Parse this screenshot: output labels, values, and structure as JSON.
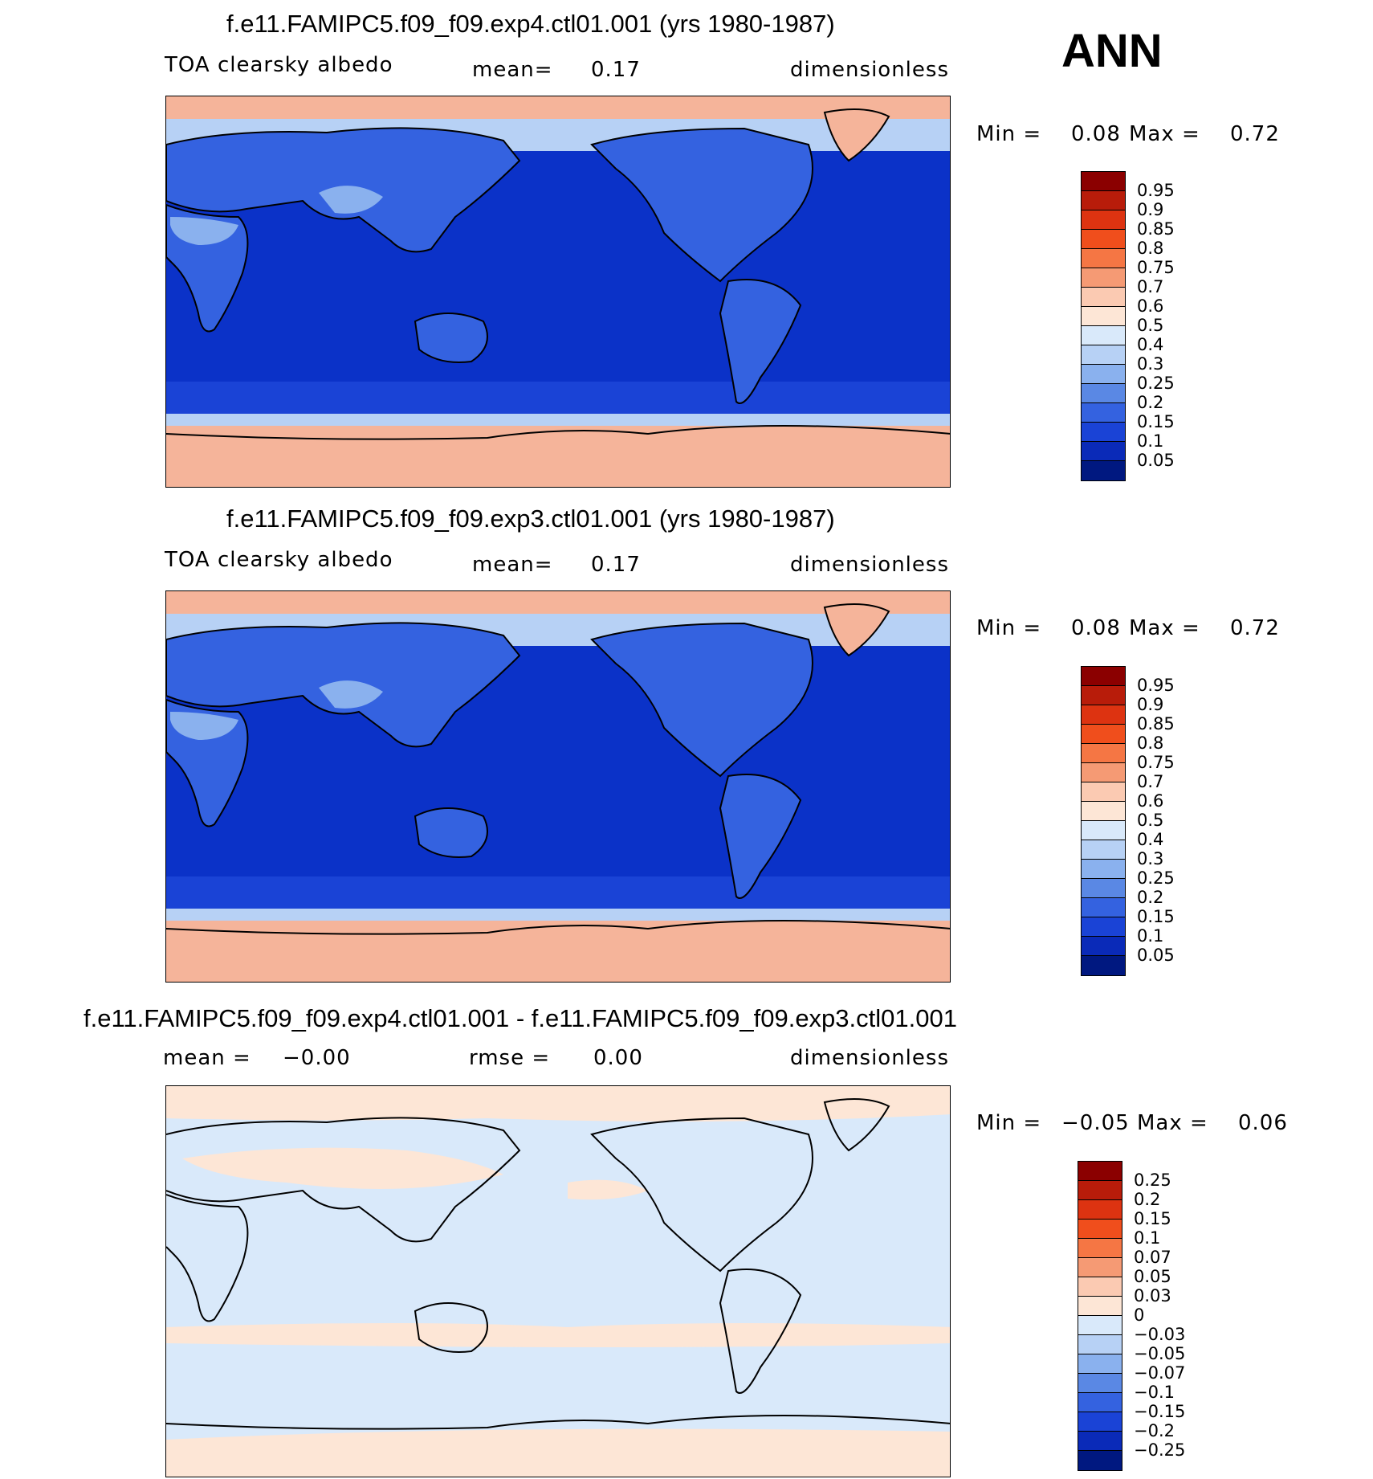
{
  "season": "ANN",
  "panels": [
    {
      "title": "f.e11.FAMIPC5.f09_f09.exp4.ctl01.001 (yrs 1980-1987)",
      "left_label": "TOA clearsky albedo",
      "mean_label": "mean=",
      "mean_value": "0.17",
      "units": "dimensionless",
      "min_label": "Min =",
      "min_value": "0.08",
      "max_label": "Max =",
      "max_value": "0.72"
    },
    {
      "title": "f.e11.FAMIPC5.f09_f09.exp3.ctl01.001 (yrs 1980-1987)",
      "left_label": "TOA clearsky albedo",
      "mean_label": "mean=",
      "mean_value": "0.17",
      "units": "dimensionless",
      "min_label": "Min =",
      "min_value": "0.08",
      "max_label": "Max =",
      "max_value": "0.72"
    },
    {
      "title": "f.e11.FAMIPC5.f09_f09.exp4.ctl01.001 - f.e11.FAMIPC5.f09_f09.exp3.ctl01.001",
      "left_label": "mean =",
      "mean_label": "",
      "mean_value": "−0.00",
      "rmse_label": "rmse =",
      "rmse_value": "0.00",
      "units": "dimensionless",
      "min_label": "Min =",
      "min_value": "−0.05",
      "max_label": "Max =",
      "max_value": "0.06"
    }
  ],
  "colorbars": {
    "abs_levels": [
      "0.95",
      "0.9",
      "0.85",
      "0.8",
      "0.75",
      "0.7",
      "0.6",
      "0.5",
      "0.4",
      "0.3",
      "0.25",
      "0.2",
      "0.15",
      "0.1",
      "0.05"
    ],
    "abs_colors": [
      "#8b0000",
      "#b81c0a",
      "#dd3311",
      "#f04e1c",
      "#f57644",
      "#f59a74",
      "#fbcab2",
      "#fde6d6",
      "#d9e9fa",
      "#b7d1f5",
      "#8ab1ee",
      "#5a88e4",
      "#3462e0",
      "#1a43d6",
      "#0a2ab8",
      "#001880"
    ],
    "diff_levels": [
      "0.25",
      "0.2",
      "0.15",
      "0.1",
      "0.07",
      "0.05",
      "0.03",
      "0",
      "−0.03",
      "−0.05",
      "−0.07",
      "−0.1",
      "−0.15",
      "−0.2",
      "−0.25"
    ],
    "diff_colors": [
      "#8b0000",
      "#b81c0a",
      "#dd3311",
      "#f04e1c",
      "#f57644",
      "#f59a74",
      "#fbcab2",
      "#fde6d6",
      "#d9e9fa",
      "#b7d1f5",
      "#8ab1ee",
      "#5a88e4",
      "#3462e0",
      "#1a43d6",
      "#0a2ab8",
      "#001880"
    ]
  },
  "map_colors": {
    "ocean_low": "#0b32c8",
    "ocean_mid": "#1a43d6",
    "land_mid": "#3462e0",
    "land_bright": "#8ab1ee",
    "polar": "#f5b49a",
    "ice_edge": "#b7d1f5",
    "diff_base": "#d9e9fa",
    "diff_pos": "#fde6d6"
  }
}
